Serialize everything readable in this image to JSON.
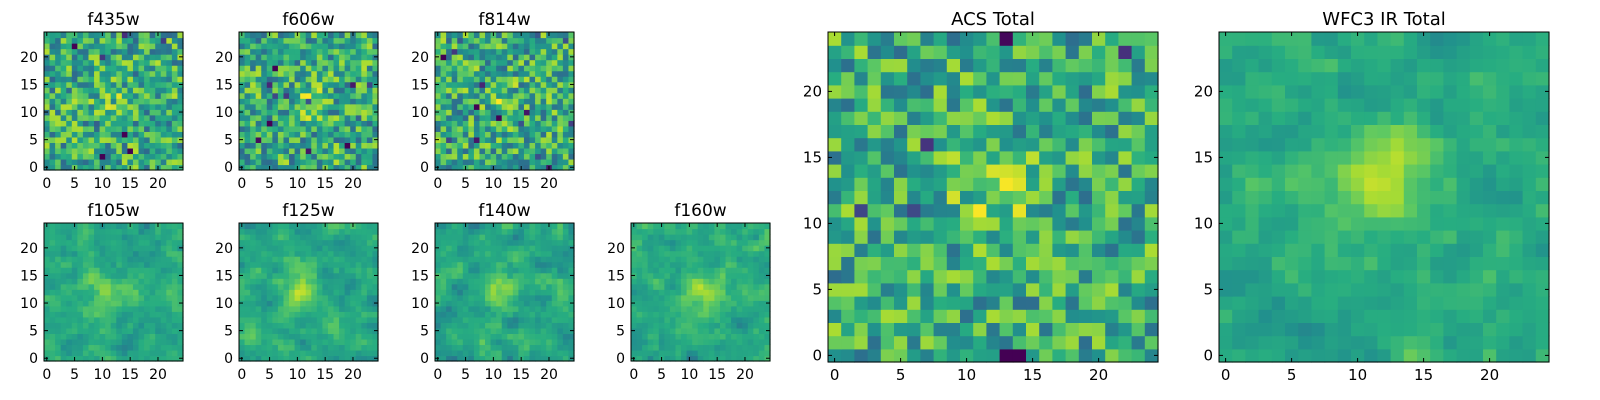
{
  "chart_data": {
    "type": "heatmap",
    "colormap": "viridis",
    "panels": [
      {
        "title": "f435w",
        "size": 25,
        "xticks": [
          0,
          5,
          10,
          15,
          20
        ],
        "yticks": [
          0,
          5,
          10,
          15,
          20
        ],
        "xlim": [
          -0.5,
          24.5
        ],
        "ylim": [
          -0.5,
          24.5
        ],
        "source_center": [
          12,
          12
        ],
        "signal": 0.1,
        "noise": 0.28,
        "seed": 11,
        "smooth": 0
      },
      {
        "title": "f606w",
        "size": 25,
        "xticks": [
          0,
          5,
          10,
          15,
          20
        ],
        "yticks": [
          0,
          5,
          10,
          15,
          20
        ],
        "xlim": [
          -0.5,
          24.5
        ],
        "ylim": [
          -0.5,
          24.5
        ],
        "source_center": [
          12,
          12
        ],
        "signal": 0.15,
        "noise": 0.28,
        "seed": 23,
        "smooth": 0
      },
      {
        "title": "f814w",
        "size": 25,
        "xticks": [
          0,
          5,
          10,
          15,
          20
        ],
        "yticks": [
          0,
          5,
          10,
          15,
          20
        ],
        "xlim": [
          -0.5,
          24.5
        ],
        "ylim": [
          -0.5,
          24.5
        ],
        "source_center": [
          12,
          12
        ],
        "signal": 0.12,
        "noise": 0.28,
        "seed": 37,
        "smooth": 0
      },
      {
        "title": "f105w",
        "size": 25,
        "xticks": [
          0,
          5,
          10,
          15,
          20
        ],
        "yticks": [
          0,
          5,
          10,
          15,
          20
        ],
        "xlim": [
          -0.5,
          24.5
        ],
        "ylim": [
          -0.5,
          24.5
        ],
        "source_center": [
          11,
          12
        ],
        "signal": 0.18,
        "noise": 0.22,
        "seed": 41,
        "smooth": 1
      },
      {
        "title": "f125w",
        "size": 25,
        "xticks": [
          0,
          5,
          10,
          15,
          20
        ],
        "yticks": [
          0,
          5,
          10,
          15,
          20
        ],
        "xlim": [
          -0.5,
          24.5
        ],
        "ylim": [
          -0.5,
          24.5
        ],
        "source_center": [
          11,
          12
        ],
        "signal": 0.25,
        "noise": 0.22,
        "seed": 53,
        "smooth": 1
      },
      {
        "title": "f140w",
        "size": 25,
        "xticks": [
          0,
          5,
          10,
          15,
          20
        ],
        "yticks": [
          0,
          5,
          10,
          15,
          20
        ],
        "xlim": [
          -0.5,
          24.5
        ],
        "ylim": [
          -0.5,
          24.5
        ],
        "source_center": [
          11,
          12
        ],
        "signal": 0.25,
        "noise": 0.22,
        "seed": 67,
        "smooth": 1
      },
      {
        "title": "f160w",
        "size": 25,
        "xticks": [
          0,
          5,
          10,
          15,
          20
        ],
        "yticks": [
          0,
          5,
          10,
          15,
          20
        ],
        "xlim": [
          -0.5,
          24.5
        ],
        "ylim": [
          -0.5,
          24.5
        ],
        "source_center": [
          12,
          12
        ],
        "signal": 0.3,
        "noise": 0.22,
        "seed": 79,
        "smooth": 1
      },
      {
        "title": "ACS Total",
        "size": 25,
        "xticks": [
          0,
          5,
          10,
          15,
          20
        ],
        "yticks": [
          0,
          5,
          10,
          15,
          20
        ],
        "xlim": [
          -0.5,
          24.5
        ],
        "ylim": [
          -0.5,
          24.5
        ],
        "source_center": [
          12,
          12
        ],
        "signal": 0.2,
        "noise": 0.26,
        "seed": 97,
        "smooth": 0
      },
      {
        "title": "WFC3 IR Total",
        "size": 25,
        "xticks": [
          0,
          5,
          10,
          15,
          20
        ],
        "yticks": [
          0,
          5,
          10,
          15,
          20
        ],
        "xlim": [
          -0.5,
          24.5
        ],
        "ylim": [
          -0.5,
          24.5
        ],
        "source_center": [
          12,
          13
        ],
        "signal": 0.35,
        "noise": 0.2,
        "seed": 113,
        "smooth": 1
      }
    ]
  }
}
